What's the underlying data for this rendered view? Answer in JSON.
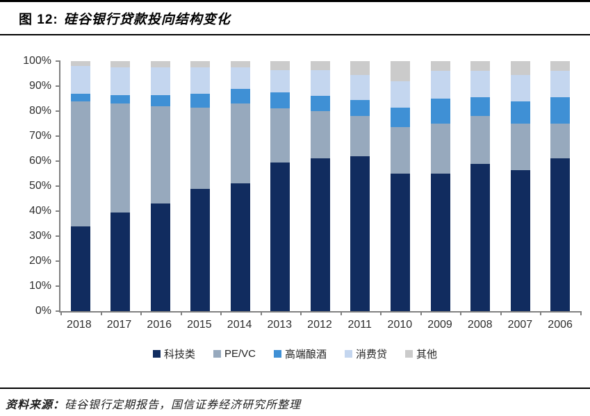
{
  "figure": {
    "label": "图 12:",
    "title": "硅谷银行贷款投向结构变化"
  },
  "source": {
    "prefix": "资料来源：",
    "text": "硅谷银行定期报告，国信证券经济研究所整理"
  },
  "chart_data": {
    "type": "bar",
    "stacked": true,
    "title": "硅谷银行贷款投向结构变化",
    "unit": "percent",
    "categories": [
      "2018",
      "2017",
      "2016",
      "2015",
      "2014",
      "2013",
      "2012",
      "2011",
      "2010",
      "2009",
      "2008",
      "2007",
      "2006"
    ],
    "series": [
      {
        "key": "tech",
        "name": "科技类",
        "color": "#112c5f",
        "values": [
          34,
          39.5,
          43,
          49,
          51,
          59.5,
          61,
          62,
          55,
          55,
          59,
          56.5,
          61
        ]
      },
      {
        "key": "pevc",
        "name": "PE/VC",
        "color": "#97a9bd",
        "values": [
          50,
          43.5,
          39,
          32.5,
          32,
          21.5,
          19,
          16,
          18.5,
          20,
          19,
          18.5,
          14
        ]
      },
      {
        "key": "wine",
        "name": "高端酿酒",
        "color": "#3f90d5",
        "values": [
          3,
          3.5,
          4.5,
          5.5,
          6,
          6.5,
          6,
          6.5,
          8,
          10,
          7.5,
          9,
          10.5
        ]
      },
      {
        "key": "consumer",
        "name": "消费贷",
        "color": "#c4d6ef",
        "values": [
          11,
          11,
          11,
          10.5,
          8.5,
          9,
          10.5,
          10,
          10.5,
          11,
          10.5,
          10.5,
          10.5
        ]
      },
      {
        "key": "other",
        "name": "其他",
        "color": "#cbcbcb",
        "values": [
          2,
          2.5,
          2.5,
          2.5,
          2.5,
          3.5,
          3.5,
          5.5,
          8,
          4,
          4,
          5.5,
          4
        ]
      }
    ],
    "ylim": [
      0,
      100
    ],
    "yticks": [
      "0%",
      "10%",
      "20%",
      "30%",
      "40%",
      "50%",
      "60%",
      "70%",
      "80%",
      "90%",
      "100%"
    ],
    "grid": false,
    "legend_position": "bottom"
  },
  "colors": {
    "rule_line": "#000000",
    "axis_line": "#808080",
    "tick_label": "#2e2e2e"
  }
}
